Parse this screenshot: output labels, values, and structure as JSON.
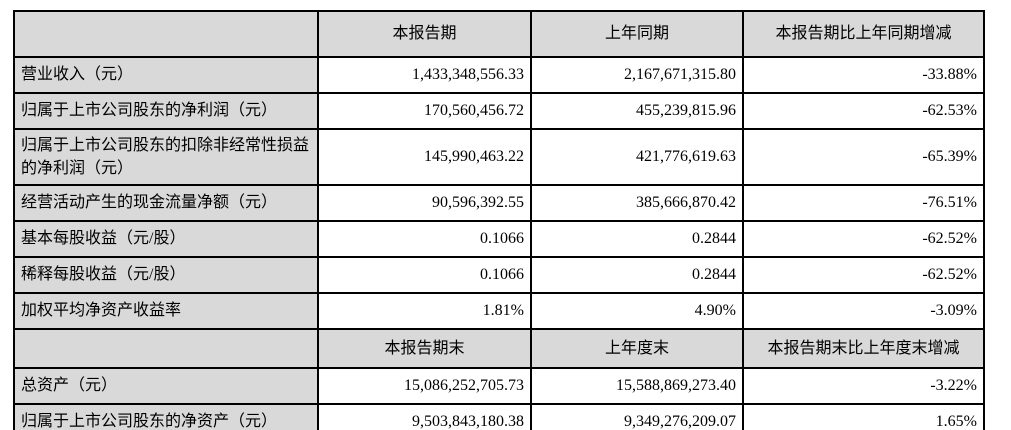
{
  "table": {
    "section1": {
      "header": {
        "label": "",
        "current": "本报告期",
        "prior": "上年同期",
        "change": "本报告期比上年同期增减"
      },
      "rows": [
        {
          "label": "营业收入（元）",
          "current": "1,433,348,556.33",
          "prior": "2,167,671,315.80",
          "change": "-33.88%"
        },
        {
          "label": "归属于上市公司股东的净利润（元）",
          "current": "170,560,456.72",
          "prior": "455,239,815.96",
          "change": "-62.53%"
        },
        {
          "label": "归属于上市公司股东的扣除非经常性损益的净利润（元）",
          "current": "145,990,463.22",
          "prior": "421,776,619.63",
          "change": "-65.39%"
        },
        {
          "label": "经营活动产生的现金流量净额（元）",
          "current": "90,596,392.55",
          "prior": "385,666,870.42",
          "change": "-76.51%"
        },
        {
          "label": "基本每股收益（元/股）",
          "current": "0.1066",
          "prior": "0.2844",
          "change": "-62.52%"
        },
        {
          "label": "稀释每股收益（元/股）",
          "current": "0.1066",
          "prior": "0.2844",
          "change": "-62.52%"
        },
        {
          "label": "加权平均净资产收益率",
          "current": "1.81%",
          "prior": "4.90%",
          "change": "-3.09%"
        }
      ]
    },
    "section2": {
      "header": {
        "label": "",
        "current": "本报告期末",
        "prior": "上年度末",
        "change": "本报告期末比上年度末增减"
      },
      "rows": [
        {
          "label": "总资产（元）",
          "current": "15,086,252,705.73",
          "prior": "15,588,869,273.40",
          "change": "-3.22%"
        },
        {
          "label": "归属于上市公司股东的净资产（元）",
          "current": "9,503,843,180.38",
          "prior": "9,349,276,209.07",
          "change": "1.65%"
        }
      ]
    }
  }
}
